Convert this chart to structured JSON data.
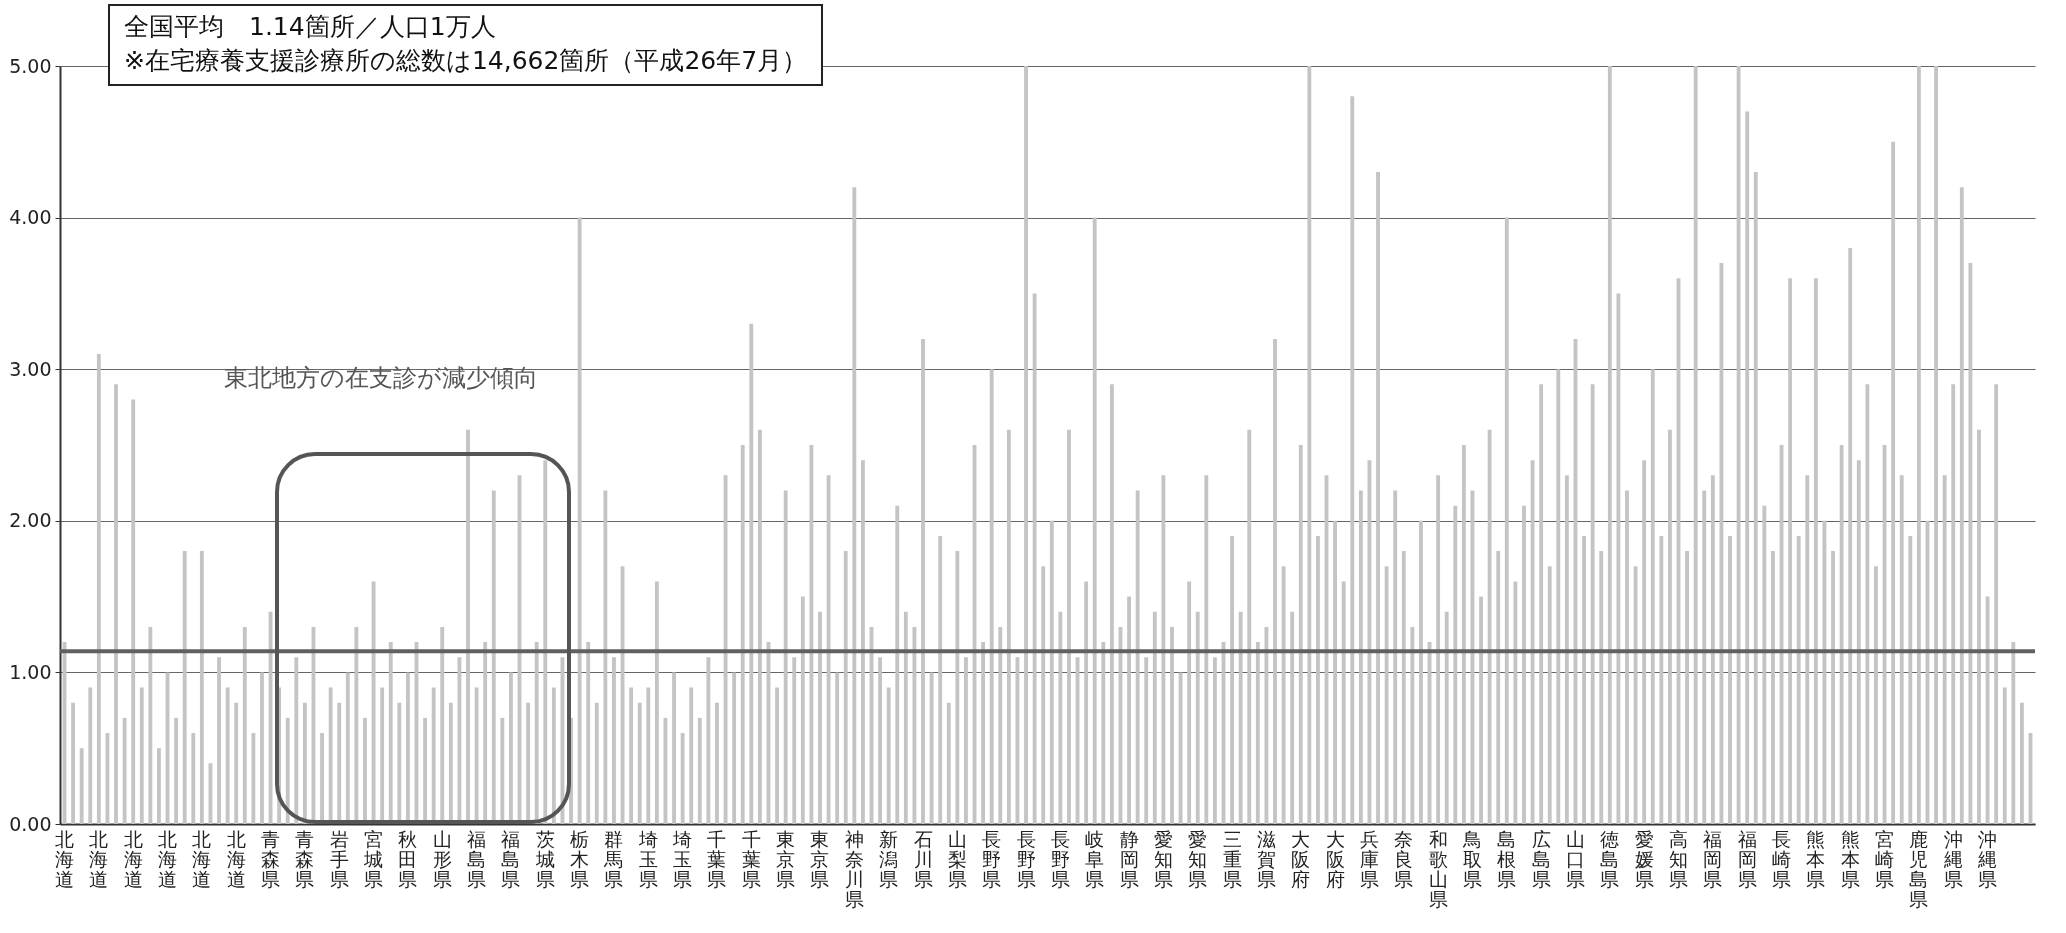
{
  "chart_data": {
    "type": "bar",
    "categories": [
      "北海道",
      null,
      null,
      null,
      "北海道",
      null,
      null,
      null,
      "北海道",
      null,
      null,
      null,
      "北海道",
      null,
      null,
      null,
      "北海道",
      null,
      null,
      null,
      "北海道",
      null,
      null,
      null,
      "青森県",
      null,
      null,
      null,
      "青森県",
      null,
      null,
      null,
      "岩手県",
      null,
      null,
      null,
      "宮城県",
      null,
      null,
      null,
      "秋田県",
      null,
      null,
      null,
      "山形県",
      null,
      null,
      null,
      "福島県",
      null,
      null,
      null,
      "福島県",
      null,
      null,
      null,
      "茨城県",
      null,
      null,
      null,
      "栃木県",
      null,
      null,
      null,
      "群馬県",
      null,
      null,
      null,
      "埼玉県",
      null,
      null,
      null,
      "埼玉県",
      null,
      null,
      null,
      "千葉県",
      null,
      null,
      null,
      "千葉県",
      null,
      null,
      null,
      "東京県",
      null,
      null,
      null,
      "東京県",
      null,
      null,
      null,
      "神奈川県",
      null,
      null,
      null,
      "新潟県",
      null,
      null,
      null,
      "石川県",
      null,
      null,
      null,
      "山梨県",
      null,
      null,
      null,
      "長野県",
      null,
      null,
      null,
      "長野県",
      null,
      null,
      null,
      "長野県",
      null,
      null,
      null,
      "岐阜県",
      null,
      null,
      null,
      "静岡県",
      null,
      null,
      null,
      "愛知県",
      null,
      null,
      null,
      "愛知県",
      null,
      null,
      null,
      "三重県",
      null,
      null,
      null,
      "滋賀県",
      null,
      null,
      null,
      "大阪府",
      null,
      null,
      null,
      "大阪府",
      null,
      null,
      null,
      "兵庫県",
      null,
      null,
      null,
      "奈良県",
      null,
      null,
      null,
      "和歌山県",
      null,
      null,
      null,
      "鳥取県",
      null,
      null,
      null,
      "島根県",
      null,
      null,
      null,
      "広島県",
      null,
      null,
      null,
      "山口県",
      null,
      null,
      null,
      "徳島県",
      null,
      null,
      null,
      "愛媛県",
      null,
      null,
      null,
      "高知県",
      null,
      null,
      null,
      "福岡県",
      null,
      null,
      null,
      "福岡県",
      null,
      null,
      null,
      "長崎県",
      null,
      null,
      null,
      "熊本県",
      null,
      null,
      null,
      "熊本県",
      null,
      null,
      null,
      "宮崎県",
      null,
      null,
      null,
      "鹿児島県",
      null,
      null,
      null,
      "沖縄県",
      null,
      null,
      null,
      "沖縄県",
      null,
      null,
      null,
      null,
      null
    ],
    "values": [
      1.2,
      0.8,
      0.5,
      0.9,
      3.1,
      0.6,
      2.9,
      0.7,
      2.8,
      0.9,
      1.3,
      0.5,
      1.0,
      0.7,
      1.8,
      0.6,
      1.8,
      0.4,
      1.1,
      0.9,
      0.8,
      1.3,
      0.6,
      1.0,
      1.4,
      0.9,
      0.7,
      1.1,
      0.8,
      1.3,
      0.6,
      0.9,
      0.8,
      1.0,
      1.3,
      0.7,
      1.6,
      0.9,
      1.2,
      0.8,
      1.0,
      1.2,
      0.7,
      0.9,
      1.3,
      0.8,
      1.1,
      2.6,
      0.9,
      1.2,
      2.2,
      0.7,
      1.0,
      2.3,
      0.8,
      1.2,
      2.4,
      0.9,
      1.1,
      0.7,
      4.0,
      1.2,
      0.8,
      2.2,
      1.1,
      1.7,
      0.9,
      0.8,
      0.9,
      1.6,
      0.7,
      1.0,
      0.6,
      0.9,
      0.7,
      1.1,
      0.8,
      2.3,
      1.0,
      2.5,
      3.3,
      2.6,
      1.2,
      0.9,
      2.2,
      1.1,
      1.5,
      2.5,
      1.4,
      2.3,
      1.0,
      1.8,
      4.2,
      2.4,
      1.3,
      1.1,
      0.9,
      2.1,
      1.4,
      1.3,
      3.2,
      1.0,
      1.9,
      0.8,
      1.8,
      1.1,
      2.5,
      1.2,
      3.0,
      1.3,
      2.6,
      1.1,
      5.0,
      3.5,
      1.7,
      2.0,
      1.4,
      2.6,
      1.1,
      1.6,
      4.0,
      1.2,
      2.9,
      1.3,
      1.5,
      2.2,
      1.1,
      1.4,
      2.3,
      1.3,
      1.0,
      1.6,
      1.4,
      2.3,
      1.1,
      1.2,
      1.9,
      1.4,
      2.6,
      1.2,
      1.3,
      3.2,
      1.7,
      1.4,
      2.5,
      5.0,
      1.9,
      2.3,
      2.0,
      1.6,
      4.8,
      2.2,
      2.4,
      4.3,
      1.7,
      2.2,
      1.8,
      1.3,
      2.0,
      1.2,
      2.3,
      1.4,
      2.1,
      2.5,
      2.2,
      1.5,
      2.6,
      1.8,
      4.0,
      1.6,
      2.1,
      2.4,
      2.9,
      1.7,
      3.0,
      2.3,
      3.2,
      1.9,
      2.9,
      1.8,
      5.0,
      3.5,
      2.2,
      1.7,
      2.4,
      3.0,
      1.9,
      2.6,
      3.6,
      1.8,
      5.0,
      2.2,
      2.3,
      3.7,
      1.9,
      5.0,
      4.7,
      4.3,
      2.1,
      1.8,
      2.5,
      3.6,
      1.9,
      2.3,
      3.6,
      2.0,
      1.8,
      2.5,
      3.8,
      2.4,
      2.9,
      1.7,
      2.5,
      4.5,
      2.3,
      1.9,
      5.0,
      2.0,
      5.0,
      2.3,
      2.9,
      4.2,
      3.7,
      2.6,
      1.5,
      2.9,
      0.9,
      1.2,
      0.8,
      0.6
    ],
    "color": "#c4c4c4",
    "ylim": [
      0,
      5
    ],
    "yticks": [
      {
        "value": 0,
        "label": "0.00"
      },
      {
        "value": 1,
        "label": "1.00"
      },
      {
        "value": 2,
        "label": "2.00"
      },
      {
        "value": 3,
        "label": "3.00"
      },
      {
        "value": 4,
        "label": "4.00"
      },
      {
        "value": 5,
        "label": "5.00"
      }
    ],
    "grid": "y",
    "ref_lines": [
      {
        "axis": "y",
        "value": 1.14,
        "color": "#606060"
      }
    ],
    "annotations": [
      "全国平均　1.14箇所／人口1万人",
      "※在宅療養支援診療所の総数は14,662箇所（平成26年7月）",
      "東北地方の在支診が減少傾向"
    ]
  }
}
